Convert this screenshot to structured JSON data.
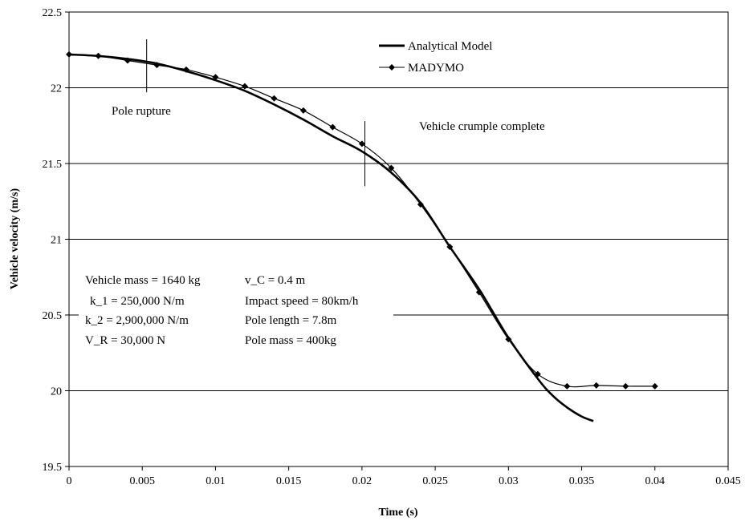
{
  "chart_data": {
    "type": "line",
    "xlabel": "Time (s)",
    "ylabel": "Vehicle velocity (m/s)",
    "xlim": [
      0,
      0.045
    ],
    "ylim": [
      19.5,
      22.5
    ],
    "x_ticks": [
      0,
      0.005,
      0.01,
      0.015,
      0.02,
      0.025,
      0.03,
      0.035,
      0.04,
      0.045
    ],
    "x_tick_labels": [
      "0",
      "0.005",
      "0.01",
      "0.015",
      "0.02",
      "0.025",
      "0.03",
      "0.035",
      "0.04",
      "0.045"
    ],
    "y_ticks": [
      19.5,
      20,
      20.5,
      21,
      21.5,
      22,
      22.5
    ],
    "y_tick_labels": [
      "19.5",
      "20",
      "20.5",
      "21",
      "21.5",
      "22",
      "22.5"
    ],
    "grid": "horizontal",
    "legend_position": "top-right",
    "series": [
      {
        "name": "Analytical Model",
        "style": "thick-line",
        "color": "#000000",
        "x": [
          0,
          0.002,
          0.004,
          0.006,
          0.008,
          0.01,
          0.012,
          0.014,
          0.016,
          0.018,
          0.02,
          0.022,
          0.024,
          0.026,
          0.028,
          0.03,
          0.032,
          0.033,
          0.034,
          0.035,
          0.0358
        ],
        "y": [
          22.22,
          22.21,
          22.19,
          22.16,
          22.11,
          22.05,
          21.98,
          21.89,
          21.79,
          21.68,
          21.58,
          21.44,
          21.24,
          20.95,
          20.67,
          20.35,
          20.08,
          19.97,
          19.89,
          19.83,
          19.8
        ]
      },
      {
        "name": "MADYMO",
        "style": "line-diamond",
        "color": "#000000",
        "x": [
          0,
          0.002,
          0.004,
          0.006,
          0.008,
          0.01,
          0.012,
          0.014,
          0.016,
          0.018,
          0.02,
          0.022,
          0.024,
          0.026,
          0.028,
          0.03,
          0.032,
          0.034,
          0.036,
          0.038,
          0.04
        ],
        "y": [
          22.22,
          22.21,
          22.18,
          22.15,
          22.12,
          22.07,
          22.01,
          21.93,
          21.85,
          21.74,
          21.63,
          21.47,
          21.23,
          20.95,
          20.65,
          20.34,
          20.11,
          20.03,
          20.035,
          20.03,
          20.03
        ]
      }
    ],
    "markers": [
      {
        "x": 0.0053,
        "y_from": 21.97,
        "y_to": 22.32
      },
      {
        "x": 0.0202,
        "y_from": 21.35,
        "y_to": 21.78
      }
    ],
    "annotations": {
      "pole_rupture": "Pole rupture",
      "crumple": "Vehicle crumple complete",
      "params": [
        {
          "left": "Vehicle mass = 1640 kg",
          "right": "v_C = 0.4 m"
        },
        {
          "left": "k_1 = 250,000 N/m",
          "right": "Impact speed = 80km/h"
        },
        {
          "left": "k_2 = 2,900,000 N/m",
          "right": "Pole length    = 7.8m"
        },
        {
          "left": "V_R = 30,000 N",
          "right": "Pole mass    = 400kg"
        }
      ]
    }
  }
}
